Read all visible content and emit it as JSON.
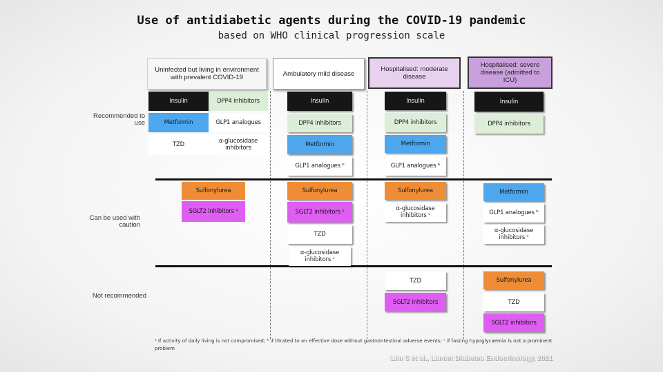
{
  "title": "Use of antidiabetic agents during the COVID-19 pandemic",
  "subtitle": "based on WHO clinical progression scale",
  "headers": {
    "uninfected": "Uninfected but living in environment with prevalent COVID-19",
    "ambulatory": "Ambulatory mild disease",
    "moderate": "Hospitalised: moderate disease",
    "severe": "Hospitalised: severe disease (admitted to ICU)"
  },
  "row_labels": {
    "recommended": "Recommended to use",
    "caution": "Can be used with caution",
    "not_recommended": "Not recommended"
  },
  "cells": {
    "unin_insulin": "Insulin",
    "unin_dpp4": "DPP4 inhibitors",
    "unin_metformin": "Metformin",
    "unin_glp1": "GLP1 analogues",
    "unin_tzd": "TZD",
    "unin_alpha": "α-glucosidase inhibitors",
    "unin_sulfonylurea": "Sulfonylurea",
    "unin_sglt2": "SGLT2 inhibitors ᵃ",
    "amb_insulin": "Insulin",
    "amb_dpp4": "DPP4 inhibitors",
    "amb_metformin": "Metformin",
    "amb_glp1": "GLP1 analogues ᵇ",
    "amb_sulfonylurea": "Sulfonylurea",
    "amb_sglt2": "SGLT2 inhibitors ᵃ",
    "amb_tzd": "TZD",
    "amb_alpha": "α-glucosidase inhibitors ᶜ",
    "mod_insulin": "Insulin",
    "mod_dpp4": "DPP4 inhibitors",
    "mod_metformin": "Metformin",
    "mod_glp1": "GLP1 analogues ᵇ",
    "mod_sulfonylurea": "Sulfonylurea",
    "mod_alpha": "α-glucosidase inhibitors ᶜ",
    "mod_tzd": "TZD",
    "mod_sglt2": "SGLT2 inhibitors",
    "sev_insulin": "Insulin",
    "sev_dpp4": "DPP4 inhibitors",
    "sev_metformin": "Metformin",
    "sev_glp1": "GLP1 analogues ᵇ",
    "sev_alpha": "α-glucosidase inhibitors ᶜ",
    "sev_sulfonylurea": "Sulfonylurea",
    "sev_tzd": "TZD",
    "sev_sglt2": "SGLT2 inhibitors"
  },
  "footnote": "ᵃ If activity of daily living is not compromised; ᵇ if titrated to an effective dose without gastrointestinal adverse events; ᶜ if fasting hypoglycaemia is not a prominent problem",
  "citation": "Lim S et al., Lancet Diabetes Endocrinology, 2021",
  "colors": {
    "insulin": "#161616",
    "dpp4": "#ddeed8",
    "metformin": "#4ea6ec",
    "sulfonylurea": "#ef8d36",
    "sglt2": "#dd5ef0",
    "moderate_header": "#e7d1ef",
    "severe_header": "#c9a0dc"
  }
}
